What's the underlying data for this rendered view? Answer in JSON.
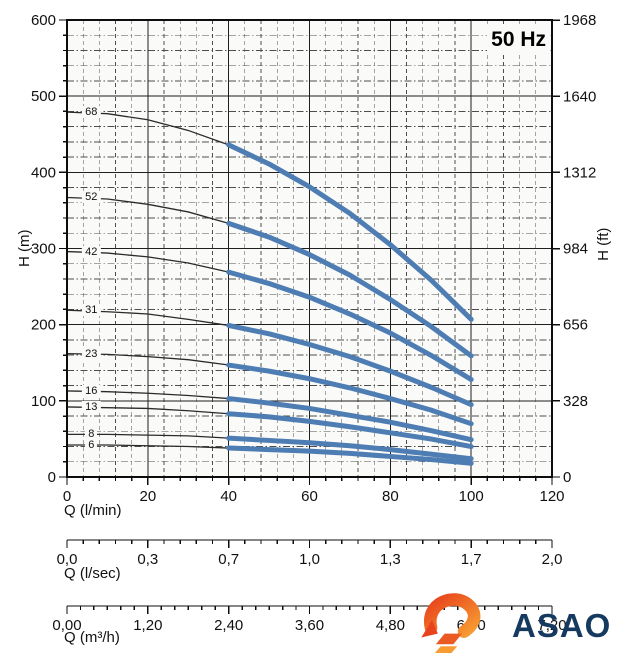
{
  "header": {
    "frequency_label": "50 Hz"
  },
  "colors": {
    "curve_blue": "#4d7db3",
    "curve_black": "#2b2b2b",
    "grid_major": "#1f1f1f",
    "grid_minor": "#4d4d4d",
    "axis": "#0d0d0d",
    "plot_bg": "#fafaf8",
    "logo_navy": "#16395f",
    "logo_red": "#e8431c",
    "logo_orange": "#f79c32",
    "logo_stripe1": "#ec5a24",
    "logo_stripe2": "#f89c32"
  },
  "axes": {
    "left": {
      "label": "H (m)",
      "ticks": [
        0,
        100,
        200,
        300,
        400,
        500,
        600
      ],
      "minor_step": 20,
      "range": [
        0,
        600
      ]
    },
    "right": {
      "label": "H (ft)",
      "ticks": [
        0,
        328,
        656,
        984,
        1312,
        1640,
        1968
      ]
    },
    "bottom_lmin": {
      "label": "Q (l/min)",
      "ticks": [
        0,
        20,
        40,
        60,
        80,
        100,
        120
      ],
      "minor_step": 4,
      "range": [
        0,
        120
      ]
    },
    "bottom_lsec": {
      "label": "Q (l/sec)",
      "tick_labels": [
        "0,0",
        "0,3",
        "0,7",
        "1,0",
        "1,3",
        "1,7",
        "2,0"
      ],
      "minor_per_div": 4
    },
    "bottom_m3h": {
      "label": "Q (m³/h)",
      "tick_labels": [
        "0,00",
        "1,20",
        "2,40",
        "3,60",
        "4,80",
        "6,00",
        "7,20"
      ],
      "minor_per_div": 5
    }
  },
  "chart_data": {
    "type": "line",
    "title": "50 Hz",
    "xlabel": "Q (l/min)",
    "ylabel": "H (m)",
    "y2label": "H (ft)",
    "xlim": [
      0,
      120
    ],
    "ylim": [
      0,
      600
    ],
    "grid": "on",
    "bold_range_lmin": [
      40,
      100
    ],
    "x": [
      0,
      10,
      20,
      30,
      40,
      50,
      60,
      70,
      80,
      90,
      100
    ],
    "series": [
      {
        "name": "68",
        "values": [
          479,
          477,
          469,
          455,
          436,
          411,
          381,
          346,
          305,
          259,
          207
        ]
      },
      {
        "name": "52",
        "values": [
          367,
          365,
          358,
          348,
          333,
          315,
          292,
          265,
          233,
          198,
          159
        ]
      },
      {
        "name": "42",
        "values": [
          296,
          294,
          289,
          281,
          269,
          254,
          236,
          214,
          189,
          160,
          128
        ]
      },
      {
        "name": "31",
        "values": [
          219,
          217,
          214,
          207,
          199,
          188,
          174,
          158,
          139,
          118,
          95
        ]
      },
      {
        "name": "23",
        "values": [
          162,
          161,
          158,
          154,
          147,
          139,
          129,
          117,
          103,
          88,
          70
        ]
      },
      {
        "name": "16",
        "values": [
          113,
          112,
          110,
          107,
          103,
          97,
          90,
          81,
          72,
          61,
          49
        ]
      },
      {
        "name": "13",
        "values": [
          92,
          91,
          90,
          87,
          83,
          79,
          73,
          66,
          58,
          50,
          40
        ]
      },
      {
        "name": "8",
        "values": [
          56,
          56,
          55,
          54,
          51,
          48,
          45,
          41,
          36,
          30,
          24
        ]
      },
      {
        "name": "6",
        "values": [
          42,
          42,
          41,
          40,
          38,
          36,
          34,
          31,
          27,
          23,
          18
        ]
      }
    ]
  },
  "logo": {
    "text": "ASAO"
  }
}
